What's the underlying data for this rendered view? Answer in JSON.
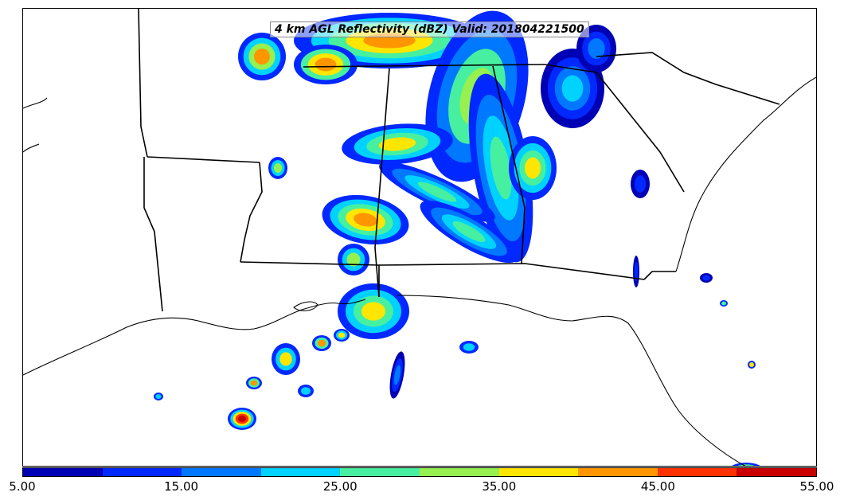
{
  "title": "4 km AGL Reflectivity (dBZ) Valid: 201804221500",
  "colorbar": {
    "min": 5.0,
    "max": 55.0,
    "interval": 5,
    "colors": [
      "#0000b4",
      "#0028ff",
      "#0078ff",
      "#00d2ff",
      "#46f0a0",
      "#96f050",
      "#ffe600",
      "#ff9600",
      "#ff3200",
      "#c80000"
    ],
    "tick_labels": [
      "5.00",
      "15.00",
      "25.00",
      "35.00",
      "45.00",
      "55.00"
    ]
  },
  "map": {
    "region": "Southeastern United States",
    "features": [
      "state-borders",
      "coastlines"
    ]
  }
}
